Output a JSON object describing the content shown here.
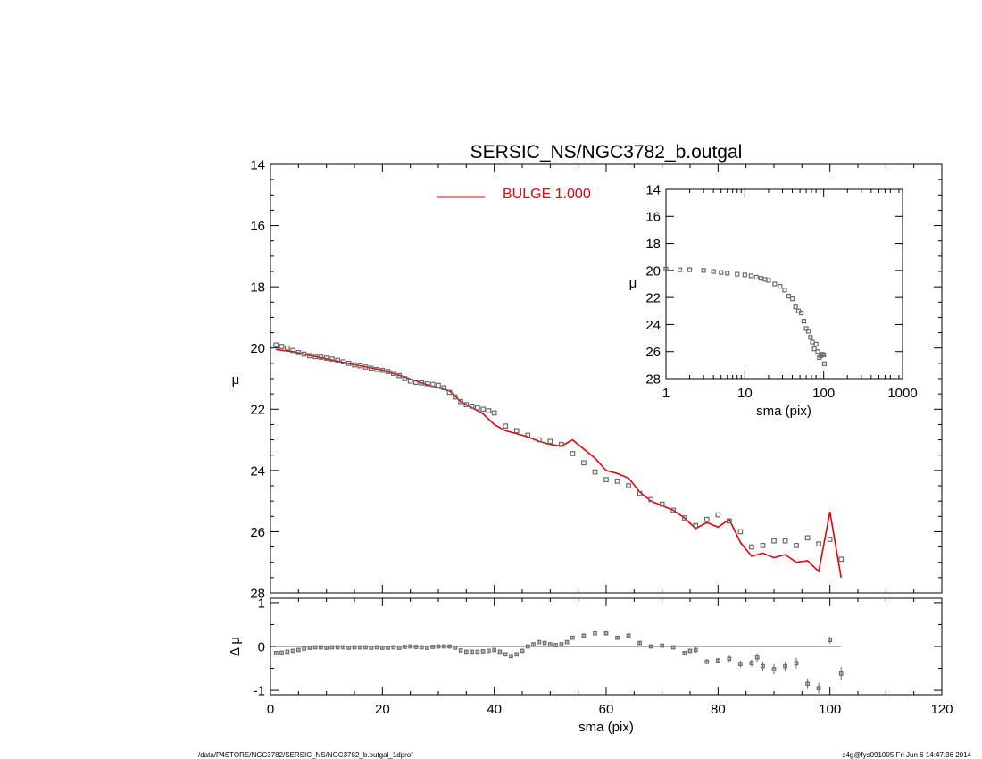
{
  "footer": {
    "left": "/data/P4STORE/NGC3782/SERSIC_NS/NGC3782_b.outgal_1dprof",
    "right": "s4g@fys091005  Fri Jun  6 14:47:36 2014"
  },
  "colors": {
    "model": "#e8000b",
    "data": "#6a6a6a",
    "axis": "#000000",
    "zero_line": "#666666"
  },
  "chart_data": [
    {
      "panel": "main",
      "type": "scatter",
      "title": "SERSIC_NS/NGC3782_b.outgal",
      "xlabel": "",
      "ylabel": "μ",
      "xlim": [
        0,
        120
      ],
      "ylim": [
        28,
        14
      ],
      "xticks": [
        0,
        20,
        40,
        60,
        80,
        100,
        120
      ],
      "yticks": [
        14,
        16,
        18,
        20,
        22,
        24,
        26,
        28
      ],
      "legend": {
        "label": "BULGE  1.000",
        "position": "top-center"
      },
      "series": [
        {
          "role": "data",
          "x": [
            1,
            2,
            3,
            4,
            5,
            6,
            7,
            8,
            9,
            10,
            11,
            12,
            13,
            14,
            15,
            16,
            17,
            18,
            19,
            20,
            21,
            22,
            23,
            24,
            25,
            26,
            27,
            28,
            29,
            30,
            31,
            32,
            33,
            34,
            35,
            36,
            37,
            38,
            39,
            40,
            42,
            44,
            46,
            48,
            50,
            52,
            54,
            56,
            58,
            60,
            62,
            64,
            66,
            68,
            70,
            72,
            74,
            76,
            78,
            80,
            82,
            84,
            86,
            88,
            90,
            92,
            94,
            96,
            98,
            100,
            102
          ],
          "y": [
            19.9,
            19.95,
            20.0,
            20.08,
            20.15,
            20.2,
            20.25,
            20.28,
            20.3,
            20.33,
            20.36,
            20.4,
            20.45,
            20.5,
            20.55,
            20.58,
            20.62,
            20.66,
            20.7,
            20.73,
            20.77,
            20.83,
            20.9,
            21.0,
            21.08,
            21.12,
            21.14,
            21.17,
            21.19,
            21.22,
            21.3,
            21.45,
            21.6,
            21.75,
            21.85,
            21.9,
            21.95,
            22.0,
            22.05,
            22.12,
            22.55,
            22.7,
            22.85,
            23.0,
            23.05,
            23.15,
            23.45,
            23.75,
            24.05,
            24.3,
            24.35,
            24.5,
            24.75,
            24.95,
            25.1,
            25.3,
            25.55,
            25.8,
            25.6,
            25.45,
            25.65,
            26.0,
            26.5,
            26.45,
            26.3,
            26.3,
            26.45,
            26.2,
            26.4,
            26.25,
            26.9
          ]
        },
        {
          "role": "model",
          "name": "BULGE  1.000",
          "x": [
            1,
            4,
            8,
            12,
            16,
            20,
            24,
            28,
            32,
            34,
            36,
            38,
            40,
            42,
            44,
            46,
            48,
            50,
            52,
            54,
            56,
            58,
            60,
            62,
            64,
            66,
            68,
            70,
            72,
            74,
            76,
            78,
            80,
            82,
            84,
            86,
            88,
            90,
            92,
            94,
            96,
            98,
            100,
            102
          ],
          "y": [
            20.05,
            20.12,
            20.28,
            20.43,
            20.58,
            20.72,
            20.95,
            21.2,
            21.4,
            21.75,
            21.95,
            22.15,
            22.5,
            22.7,
            22.8,
            22.9,
            23.05,
            23.15,
            23.2,
            23.0,
            23.3,
            23.6,
            24.0,
            24.1,
            24.25,
            24.7,
            25.0,
            25.15,
            25.3,
            25.55,
            25.9,
            25.7,
            25.85,
            25.6,
            26.35,
            26.8,
            26.7,
            26.85,
            26.75,
            27.0,
            26.95,
            27.3,
            25.35,
            27.5
          ]
        }
      ]
    },
    {
      "panel": "inset",
      "type": "scatter",
      "xlabel": "sma (pix)",
      "ylabel": "μ",
      "xscale": "log",
      "xlim": [
        1,
        1000
      ],
      "ylim": [
        28,
        14
      ],
      "xticks": [
        1,
        10,
        100,
        1000
      ],
      "yticks": [
        14,
        16,
        18,
        20,
        22,
        24,
        26,
        28
      ],
      "series": [
        {
          "role": "data",
          "x": [
            1,
            1.5,
            2,
            3,
            4,
            5,
            6,
            8,
            10,
            12,
            14,
            16,
            18,
            20,
            24,
            28,
            32,
            36,
            40,
            44,
            48,
            52,
            56,
            60,
            64,
            68,
            72,
            76,
            80,
            84,
            88,
            92,
            96,
            100,
            102
          ],
          "y": [
            19.9,
            19.95,
            19.95,
            20.0,
            20.08,
            20.15,
            20.2,
            20.28,
            20.33,
            20.4,
            20.5,
            20.58,
            20.66,
            20.73,
            21.0,
            21.17,
            21.45,
            21.9,
            22.1,
            22.7,
            23.0,
            23.15,
            23.75,
            24.3,
            24.5,
            24.95,
            25.3,
            25.8,
            25.45,
            26.0,
            26.45,
            26.3,
            26.2,
            26.25,
            26.9
          ]
        }
      ]
    },
    {
      "panel": "residual",
      "type": "scatter",
      "xlabel": "sma (pix)",
      "ylabel": "Δ μ",
      "xlim": [
        0,
        120
      ],
      "ylim": [
        -1.1,
        1.1
      ],
      "xticks": [
        0,
        20,
        40,
        60,
        80,
        100,
        120
      ],
      "yticks": [
        -1,
        0,
        1
      ],
      "series": [
        {
          "role": "residual",
          "x": [
            1,
            2,
            3,
            4,
            5,
            6,
            7,
            8,
            9,
            10,
            11,
            12,
            13,
            14,
            15,
            16,
            17,
            18,
            19,
            20,
            21,
            22,
            23,
            24,
            25,
            26,
            27,
            28,
            29,
            30,
            31,
            32,
            33,
            34,
            35,
            36,
            37,
            38,
            39,
            40,
            41,
            42,
            43,
            44,
            45,
            46,
            47,
            48,
            49,
            50,
            51,
            52,
            53,
            54,
            56,
            58,
            60,
            62,
            64,
            66,
            68,
            70,
            72,
            74,
            75,
            76,
            78,
            80,
            82,
            84,
            86,
            87,
            88,
            90,
            92,
            94,
            96,
            98,
            100,
            102
          ],
          "y": [
            -0.15,
            -0.14,
            -0.12,
            -0.1,
            -0.08,
            -0.05,
            -0.03,
            -0.02,
            -0.02,
            -0.03,
            -0.02,
            -0.02,
            -0.02,
            -0.03,
            -0.02,
            -0.02,
            -0.02,
            -0.03,
            -0.02,
            -0.03,
            -0.03,
            -0.02,
            -0.03,
            -0.01,
            0.0,
            -0.01,
            -0.02,
            -0.03,
            -0.01,
            0.0,
            0.0,
            0.0,
            -0.03,
            -0.09,
            -0.12,
            -0.12,
            -0.12,
            -0.11,
            -0.1,
            -0.08,
            -0.12,
            -0.18,
            -0.22,
            -0.18,
            -0.1,
            0.0,
            0.05,
            0.1,
            0.08,
            0.05,
            0.03,
            0.05,
            0.1,
            0.2,
            0.25,
            0.3,
            0.3,
            0.2,
            0.25,
            0.08,
            0.0,
            0.02,
            -0.02,
            -0.15,
            -0.1,
            -0.08,
            -0.35,
            -0.32,
            -0.28,
            -0.4,
            -0.38,
            -0.25,
            -0.45,
            -0.52,
            -0.45,
            -0.38,
            -0.85,
            -0.95,
            0.15,
            -0.62
          ],
          "err": [
            0.02,
            0.02,
            0.02,
            0.02,
            0.02,
            0.02,
            0.02,
            0.02,
            0.02,
            0.02,
            0.02,
            0.02,
            0.02,
            0.02,
            0.02,
            0.02,
            0.02,
            0.02,
            0.02,
            0.02,
            0.02,
            0.02,
            0.02,
            0.02,
            0.02,
            0.02,
            0.02,
            0.02,
            0.02,
            0.02,
            0.02,
            0.02,
            0.02,
            0.02,
            0.02,
            0.02,
            0.02,
            0.02,
            0.02,
            0.02,
            0.02,
            0.02,
            0.02,
            0.02,
            0.02,
            0.02,
            0.02,
            0.02,
            0.02,
            0.02,
            0.02,
            0.02,
            0.02,
            0.02,
            0.03,
            0.03,
            0.03,
            0.03,
            0.03,
            0.04,
            0.04,
            0.04,
            0.05,
            0.05,
            0.05,
            0.06,
            0.06,
            0.06,
            0.07,
            0.08,
            0.08,
            0.1,
            0.1,
            0.12,
            0.1,
            0.12,
            0.12,
            0.12,
            0.08,
            0.15
          ]
        }
      ]
    }
  ]
}
